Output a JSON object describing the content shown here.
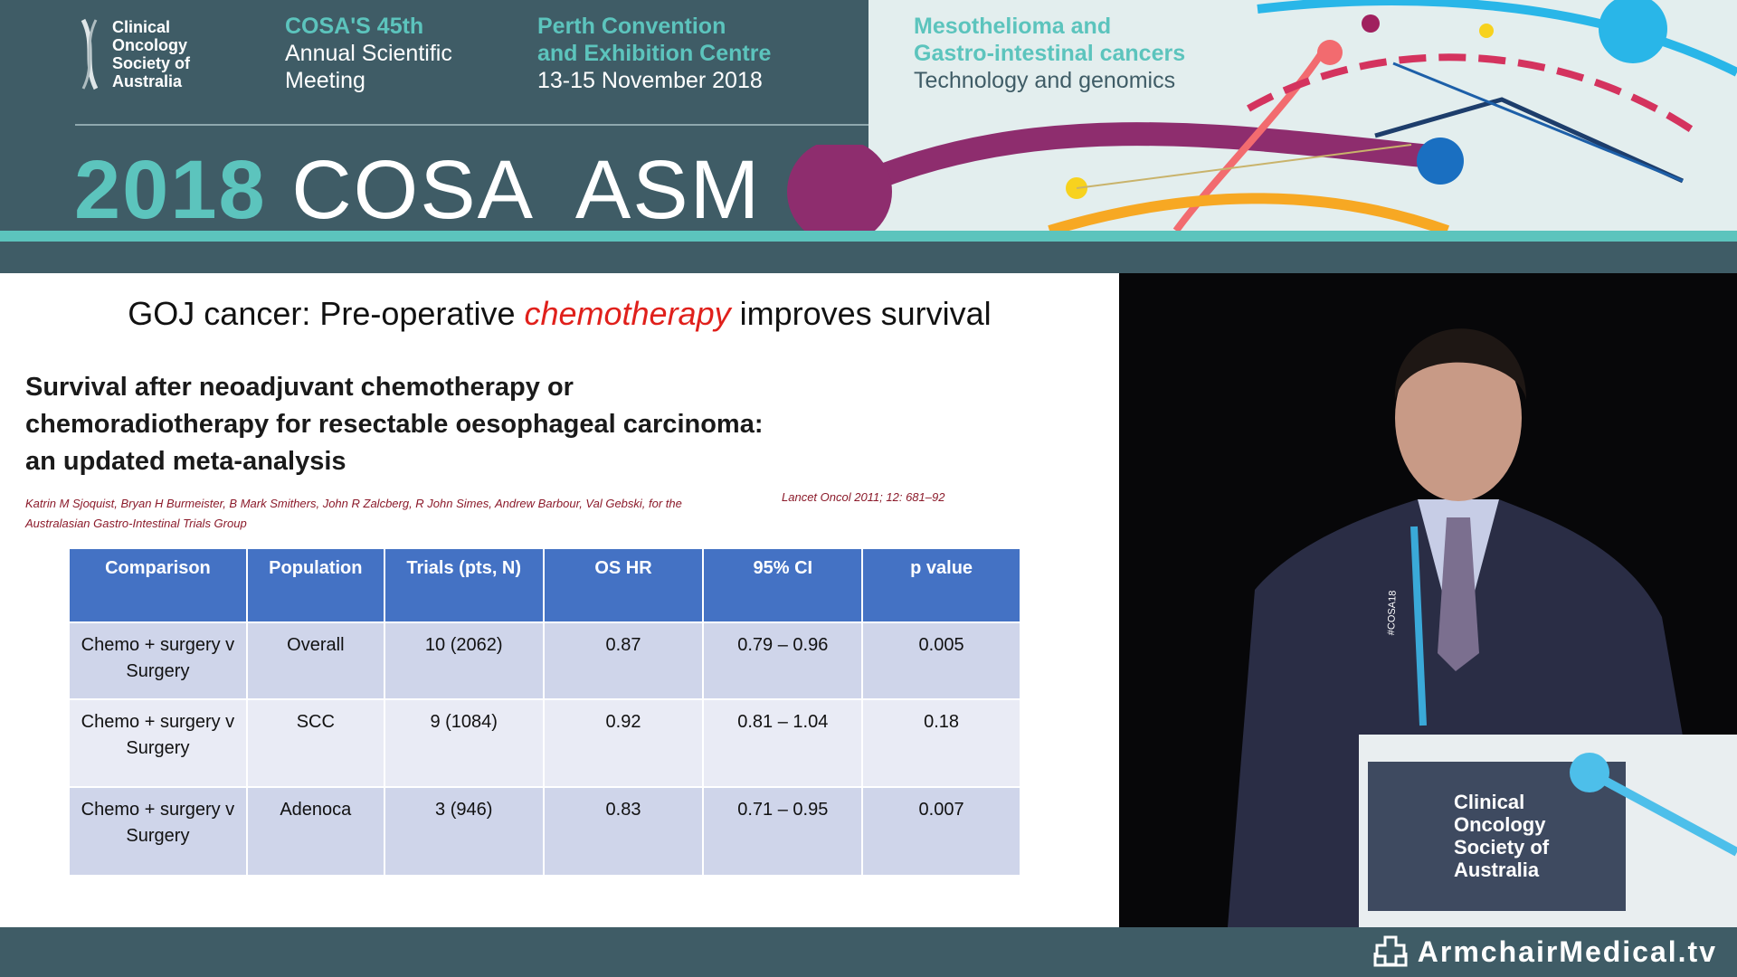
{
  "header": {
    "logo_text": [
      "Clinical",
      "Oncology",
      "Society of",
      "Australia"
    ],
    "meeting": {
      "line1": "COSA'S 45th",
      "line2": "Annual Scientific",
      "line3": "Meeting"
    },
    "venue": {
      "line1": "Perth Convention",
      "line2": "and Exhibition Centre",
      "line3": "13-15 November 2018"
    },
    "theme": {
      "line1": "Mesothelioma and",
      "line2": "Gastro-intestinal cancers",
      "line3": "Technology and genomics"
    },
    "big_year": "2018",
    "big_title": "COSA  ASM"
  },
  "slide": {
    "title_pre": "GOJ cancer: Pre-operative ",
    "title_em": "chemotherapy",
    "title_post": " improves survival",
    "paper_title": [
      "Survival after neoadjuvant chemotherapy or",
      "chemoradiotherapy for resectable oesophageal carcinoma:",
      "an updated meta-analysis"
    ],
    "authors": "Katrin M Sjoquist, Bryan H Burmeister, B Mark Smithers, John R Zalcberg, R John Simes, Andrew Barbour, Val Gebski, for the Australasian Gastro-Intestinal Trials Group",
    "citation": "Lancet Oncol 2011; 12: 681–92",
    "table": {
      "headers": [
        "Comparison",
        "Population",
        "Trials (pts, N)",
        "OS HR",
        "95% CI",
        "p value"
      ],
      "rows": [
        [
          "Chemo + surgery v Surgery",
          "Overall",
          "10 (2062)",
          "0.87",
          "0.79 – 0.96",
          "0.005"
        ],
        [
          "Chemo + surgery v Surgery",
          "SCC",
          "9 (1084)",
          "0.92",
          "0.81 – 1.04",
          "0.18"
        ],
        [
          "Chemo + surgery v Surgery",
          "Adenoca",
          "3 (946)",
          "0.83",
          "0.71 – 0.95",
          "0.007"
        ]
      ]
    }
  },
  "video": {
    "podium_logo_text": [
      "Clinical",
      "Oncology",
      "Society of",
      "Australia"
    ],
    "lanyard_text": "#COSA18"
  },
  "footer": {
    "brand": "ArmchairMedical.tv",
    "brand_icon": "armchair-cross-icon"
  },
  "colors": {
    "teal": "#5cc4bd",
    "header_bg": "#3f5c66",
    "table_header": "#4472c4",
    "accent_red": "#e0201b"
  }
}
